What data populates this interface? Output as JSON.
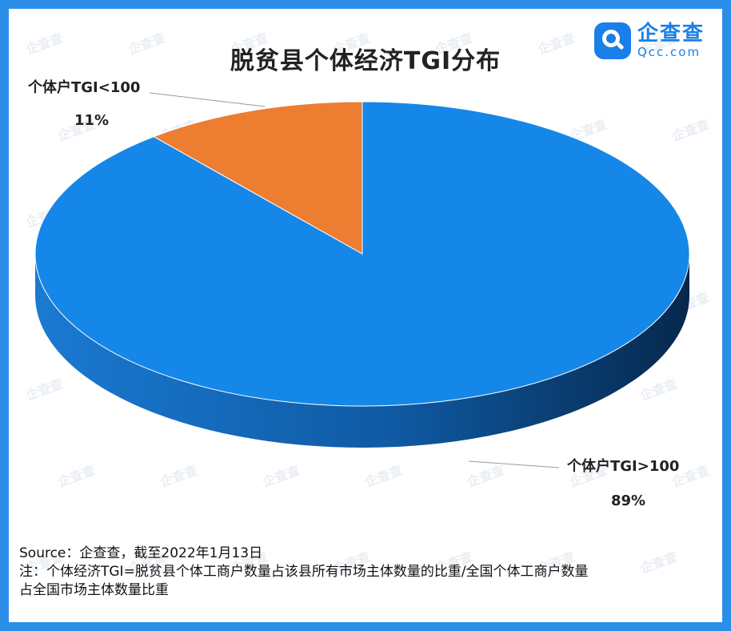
{
  "title": "脱贫县个体经济TGI分布",
  "logo": {
    "name": "企查查",
    "domain": "Qcc.com",
    "color": "#1a7fe8"
  },
  "watermark": "企查查",
  "chart_data": {
    "type": "pie",
    "title": "脱贫县个体经济TGI分布",
    "slices": [
      {
        "label": "个体户TGI>100",
        "value": 89,
        "value_label": "89%",
        "color": "#1587e8"
      },
      {
        "label": "个体户TGI<100",
        "value": 11,
        "value_label": "11%",
        "color": "#ed7d31"
      }
    ],
    "style": "3d"
  },
  "footer": {
    "source": "Source：企查查，截至2022年1月13日",
    "note_line1": "注：个体经济TGI=脱贫县个体工商户数量占该县所有市场主体数量的比重/全国个体工商户数量",
    "note_line2": "占全国市场主体数量比重"
  }
}
